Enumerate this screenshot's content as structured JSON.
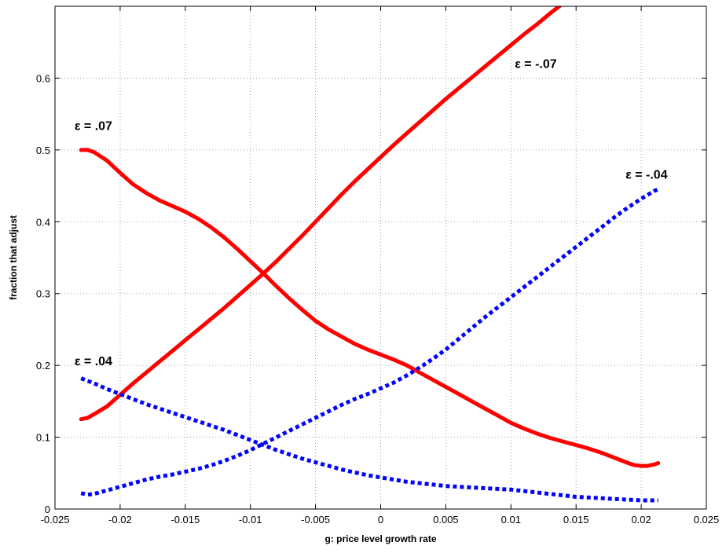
{
  "chart_data": {
    "type": "line",
    "title": "",
    "xlabel": "g: price level growth rate",
    "ylabel": "fraction that adjust",
    "xlim": [
      -0.025,
      0.025
    ],
    "ylim": [
      0,
      0.7
    ],
    "grid": true,
    "x_ticks": [
      "-0.025",
      "-0.02",
      "-0.015",
      "-0.01",
      "-0.005",
      "0",
      "0.005",
      "0.01",
      "0.015",
      "0.02",
      "0.025"
    ],
    "y_ticks": [
      "0",
      "0.1",
      "0.2",
      "0.3",
      "0.4",
      "0.5",
      "0.6"
    ],
    "series": [
      {
        "color": "#ff0000",
        "style": "solid",
        "x": [
          -0.023,
          -0.0225,
          -0.022,
          -0.021,
          -0.02,
          -0.019,
          -0.018,
          -0.017,
          -0.016,
          -0.015,
          -0.014,
          -0.013,
          -0.012,
          -0.011,
          -0.01,
          -0.009,
          -0.008,
          -0.007,
          -0.006,
          -0.005,
          -0.004,
          -0.003,
          -0.002,
          -0.001,
          0,
          0.001,
          0.002,
          0.003,
          0.004,
          0.005,
          0.006,
          0.007,
          0.008,
          0.009,
          0.01,
          0.011,
          0.012,
          0.013,
          0.014,
          0.015,
          0.0165
        ],
        "y": [
          0.125,
          0.127,
          0.132,
          0.143,
          0.159,
          0.175,
          0.19,
          0.205,
          0.22,
          0.235,
          0.25,
          0.265,
          0.28,
          0.296,
          0.312,
          0.328,
          0.345,
          0.363,
          0.381,
          0.4,
          0.419,
          0.438,
          0.456,
          0.473,
          0.49,
          0.507,
          0.523,
          0.539,
          0.555,
          0.571,
          0.586,
          0.601,
          0.616,
          0.631,
          0.646,
          0.661,
          0.675,
          0.69,
          0.704,
          0.718,
          0.74
        ]
      },
      {
        "color": "#ff0000",
        "style": "solid",
        "x": [
          -0.023,
          -0.0225,
          -0.022,
          -0.021,
          -0.02,
          -0.019,
          -0.018,
          -0.017,
          -0.016,
          -0.015,
          -0.014,
          -0.013,
          -0.012,
          -0.011,
          -0.01,
          -0.009,
          -0.008,
          -0.007,
          -0.006,
          -0.005,
          -0.004,
          -0.003,
          -0.002,
          -0.001,
          0,
          0.001,
          0.002,
          0.003,
          0.004,
          0.005,
          0.006,
          0.007,
          0.008,
          0.009,
          0.01,
          0.011,
          0.012,
          0.013,
          0.014,
          0.015,
          0.016,
          0.017,
          0.018,
          0.019,
          0.0195,
          0.02,
          0.0205,
          0.021,
          0.0213
        ],
        "y": [
          0.5,
          0.5,
          0.497,
          0.485,
          0.468,
          0.452,
          0.44,
          0.43,
          0.422,
          0.414,
          0.404,
          0.392,
          0.378,
          0.362,
          0.345,
          0.328,
          0.31,
          0.293,
          0.277,
          0.262,
          0.25,
          0.24,
          0.23,
          0.222,
          0.215,
          0.208,
          0.2,
          0.19,
          0.18,
          0.17,
          0.16,
          0.15,
          0.14,
          0.13,
          0.12,
          0.112,
          0.105,
          0.099,
          0.094,
          0.089,
          0.084,
          0.078,
          0.071,
          0.064,
          0.061,
          0.06,
          0.06,
          0.062,
          0.064
        ]
      },
      {
        "color": "#0000ff",
        "style": "dotted",
        "x": [
          -0.023,
          -0.0225,
          -0.022,
          -0.021,
          -0.02,
          -0.019,
          -0.018,
          -0.017,
          -0.016,
          -0.015,
          -0.014,
          -0.013,
          -0.012,
          -0.011,
          -0.01,
          -0.009,
          -0.008,
          -0.007,
          -0.006,
          -0.005,
          -0.004,
          -0.003,
          -0.002,
          -0.001,
          0,
          0.001,
          0.002,
          0.003,
          0.004,
          0.005,
          0.006,
          0.007,
          0.008,
          0.009,
          0.01,
          0.011,
          0.012,
          0.013,
          0.014,
          0.015,
          0.016,
          0.017,
          0.018,
          0.019,
          0.02,
          0.021,
          0.0213
        ],
        "y": [
          0.022,
          0.02,
          0.021,
          0.026,
          0.031,
          0.036,
          0.041,
          0.045,
          0.048,
          0.052,
          0.056,
          0.061,
          0.067,
          0.074,
          0.082,
          0.091,
          0.1,
          0.109,
          0.118,
          0.127,
          0.136,
          0.145,
          0.153,
          0.16,
          0.168,
          0.176,
          0.186,
          0.197,
          0.209,
          0.222,
          0.237,
          0.252,
          0.267,
          0.281,
          0.295,
          0.309,
          0.323,
          0.337,
          0.351,
          0.365,
          0.379,
          0.393,
          0.407,
          0.42,
          0.432,
          0.443,
          0.445
        ]
      },
      {
        "color": "#0000ff",
        "style": "dotted",
        "x": [
          -0.023,
          -0.022,
          -0.021,
          -0.02,
          -0.019,
          -0.018,
          -0.017,
          -0.016,
          -0.015,
          -0.014,
          -0.013,
          -0.012,
          -0.011,
          -0.01,
          -0.009,
          -0.008,
          -0.007,
          -0.006,
          -0.005,
          -0.004,
          -0.003,
          -0.002,
          -0.001,
          0,
          0.001,
          0.002,
          0.003,
          0.004,
          0.005,
          0.006,
          0.007,
          0.008,
          0.009,
          0.01,
          0.011,
          0.012,
          0.013,
          0.014,
          0.015,
          0.016,
          0.017,
          0.018,
          0.019,
          0.02,
          0.021,
          0.0213
        ],
        "y": [
          0.182,
          0.175,
          0.167,
          0.16,
          0.153,
          0.146,
          0.14,
          0.134,
          0.128,
          0.122,
          0.116,
          0.11,
          0.103,
          0.096,
          0.089,
          0.082,
          0.076,
          0.07,
          0.065,
          0.06,
          0.055,
          0.051,
          0.047,
          0.044,
          0.041,
          0.038,
          0.036,
          0.034,
          0.032,
          0.031,
          0.03,
          0.029,
          0.028,
          0.027,
          0.025,
          0.023,
          0.021,
          0.019,
          0.017,
          0.016,
          0.015,
          0.014,
          0.013,
          0.012,
          0.012,
          0.012
        ]
      }
    ],
    "annotations": [
      {
        "text": "ε = .07",
        "x": -0.0235,
        "y": 0.528
      },
      {
        "text": "ε = -.07",
        "x": 0.0103,
        "y": 0.614
      },
      {
        "text": "ε = -.04",
        "x": 0.0188,
        "y": 0.46
      },
      {
        "text": "ε = .04",
        "x": -0.0235,
        "y": 0.2
      }
    ]
  }
}
